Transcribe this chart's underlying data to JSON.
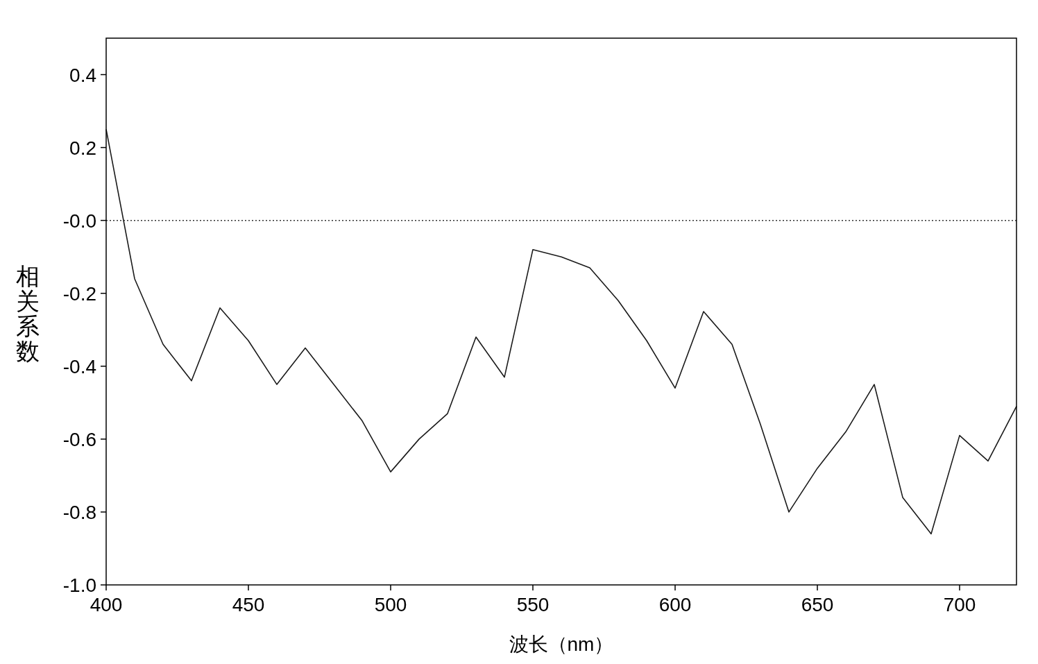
{
  "chart_data": {
    "type": "line",
    "xlabel": "波长（nm）",
    "ylabel": "相关系数",
    "x": [
      400,
      410,
      420,
      430,
      440,
      450,
      460,
      470,
      480,
      490,
      500,
      510,
      520,
      530,
      540,
      550,
      560,
      570,
      580,
      590,
      600,
      610,
      620,
      630,
      640,
      650,
      660,
      670,
      680,
      690,
      700,
      710,
      720
    ],
    "series": [
      {
        "color": "#1a1a1a",
        "values": [
          0.25,
          -0.16,
          -0.34,
          -0.44,
          -0.24,
          -0.33,
          -0.45,
          -0.35,
          -0.45,
          -0.55,
          -0.69,
          -0.6,
          -0.53,
          -0.32,
          -0.43,
          -0.08,
          -0.1,
          -0.13,
          -0.22,
          -0.33,
          -0.46,
          -0.25,
          -0.34,
          -0.56,
          -0.8,
          -0.68,
          -0.58,
          -0.45,
          -0.76,
          -0.86,
          -0.59,
          -0.66,
          -0.51
        ]
      }
    ],
    "xlim": [
      400,
      720
    ],
    "ylim": [
      -1.0,
      0.5
    ],
    "xticks": [
      400,
      450,
      500,
      550,
      600,
      650,
      700
    ],
    "yticks": [
      {
        "value": 0.4,
        "label": "0.4"
      },
      {
        "value": 0.2,
        "label": "0.2"
      },
      {
        "value": 0,
        "label": "-0.0"
      },
      {
        "value": -0.2,
        "label": "-0.2"
      },
      {
        "value": -0.4,
        "label": "-0.4"
      },
      {
        "value": -0.6,
        "label": "-0.6"
      },
      {
        "value": -0.8,
        "label": "-0.8"
      },
      {
        "value": -1.0,
        "label": "-1.0"
      }
    ],
    "ref_lines": [
      {
        "axis": "y",
        "value": 0,
        "color": "#333333",
        "line_style": "dotted"
      }
    ],
    "grid": false
  }
}
